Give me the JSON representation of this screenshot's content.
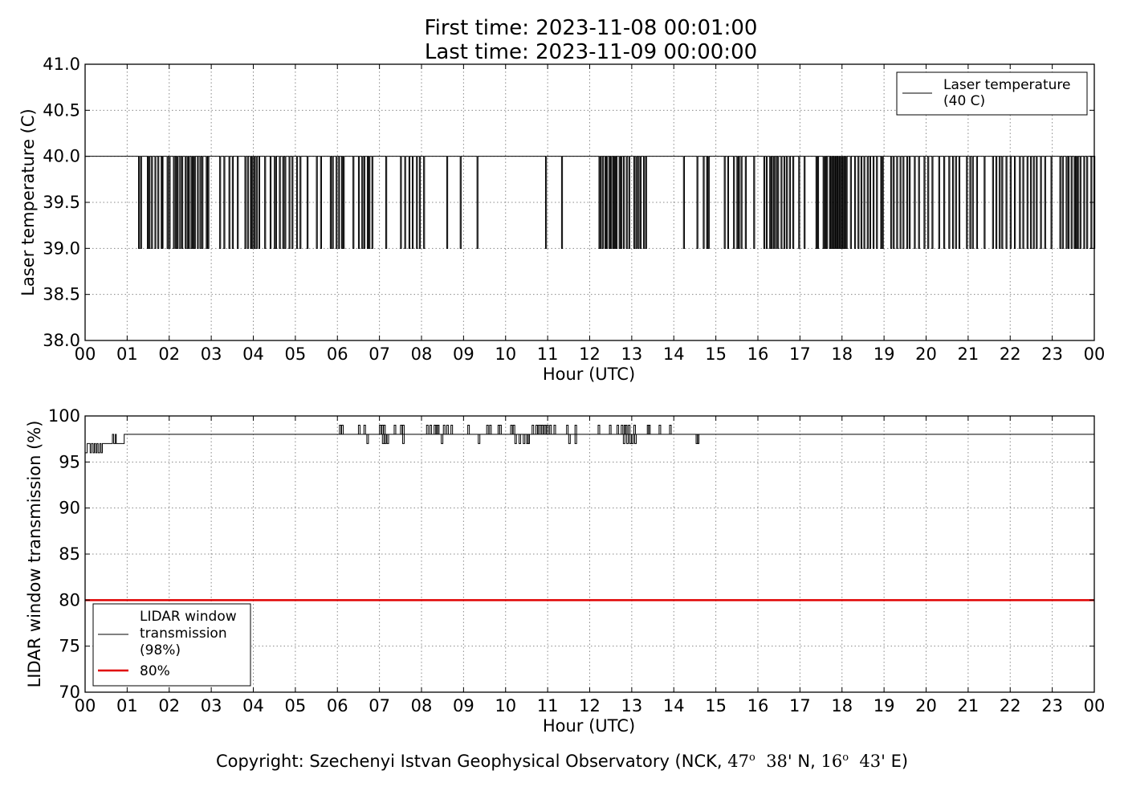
{
  "header": {
    "title_line1": "First time: 2023-11-08 00:01:00",
    "title_line2": "Last time: 2023-11-09 00:00:00"
  },
  "footer": {
    "copyright_prefix": "Copyright: Szechenyi Istvan Geophysical Observatory (NCK,",
    "lat_deg": "47",
    "lat_min": "38'",
    "lat_hemi": "N,",
    "lon_deg": "16",
    "lon_min": "43'",
    "lon_hemi": "E)",
    "degree_mark": "o"
  },
  "colors": {
    "series": "#000000",
    "threshold": "#e00000",
    "grid": "#888888",
    "frame": "#000000"
  },
  "chart_data": [
    {
      "type": "line",
      "xlabel": "Hour (UTC)",
      "ylabel": "Laser temperature (C)",
      "xlim": [
        0,
        24
      ],
      "ylim": [
        38.0,
        41.0
      ],
      "x_tick_labels": [
        "00",
        "01",
        "02",
        "03",
        "04",
        "05",
        "06",
        "07",
        "08",
        "09",
        "10",
        "11",
        "12",
        "13",
        "14",
        "15",
        "16",
        "17",
        "18",
        "19",
        "20",
        "21",
        "22",
        "23",
        "00"
      ],
      "y_ticks": [
        "38.0",
        "38.5",
        "39.0",
        "39.5",
        "40.0",
        "40.5",
        "41.0"
      ],
      "grid": true,
      "legend_position": "top-right",
      "series": [
        {
          "name_line1": "Laser temperature",
          "name_line2": "(40 C)",
          "baseline": 40.0,
          "dip_value": 39.0,
          "dips_hours": [
            1.27,
            1.32,
            1.48,
            1.52,
            1.58,
            1.66,
            1.73,
            1.81,
            1.83,
            1.95,
            2.0,
            2.1,
            2.15,
            2.19,
            2.25,
            2.3,
            2.38,
            2.43,
            2.46,
            2.52,
            2.56,
            2.6,
            2.67,
            2.73,
            2.78,
            2.88,
            2.92,
            3.2,
            3.3,
            3.42,
            3.5,
            3.62,
            3.8,
            3.86,
            3.93,
            3.97,
            4.02,
            4.07,
            4.13,
            4.27,
            4.4,
            4.5,
            4.53,
            4.62,
            4.7,
            4.75,
            4.85,
            4.92,
            5.03,
            5.11,
            5.28,
            5.5,
            5.6,
            5.83,
            5.88,
            5.97,
            6.03,
            6.1,
            6.14,
            6.37,
            6.5,
            6.58,
            6.63,
            6.71,
            6.75,
            6.82,
            7.15,
            7.5,
            7.6,
            7.7,
            7.78,
            7.88,
            7.95,
            8.05,
            8.6,
            8.92,
            9.32,
            10.95,
            11.33,
            12.22,
            12.25,
            12.3,
            12.36,
            12.4,
            12.46,
            12.5,
            12.55,
            12.59,
            12.63,
            12.7,
            12.74,
            12.8,
            12.87,
            12.93,
            13.05,
            13.1,
            13.15,
            13.2,
            13.28,
            13.33,
            14.23,
            14.55,
            14.7,
            14.78,
            14.82,
            15.2,
            15.28,
            15.42,
            15.5,
            15.54,
            15.6,
            15.7,
            15.9,
            16.14,
            16.2,
            16.28,
            16.32,
            16.37,
            16.42,
            16.47,
            16.55,
            16.62,
            16.68,
            16.75,
            16.83,
            16.97,
            17.1,
            17.38,
            17.42,
            17.55,
            17.59,
            17.63,
            17.7,
            17.74,
            17.78,
            17.82,
            17.86,
            17.9,
            17.94,
            17.98,
            18.02,
            18.06,
            18.1,
            18.2,
            18.3,
            18.38,
            18.45,
            18.52,
            18.6,
            18.66,
            18.74,
            18.82,
            18.92,
            18.96,
            19.16,
            19.22,
            19.3,
            19.38,
            19.45,
            19.54,
            19.6,
            19.72,
            19.82,
            19.95,
            20.04,
            20.14,
            20.3,
            20.42,
            20.54,
            20.63,
            20.7,
            20.78,
            20.96,
            21.04,
            21.1,
            21.2,
            21.38,
            21.58,
            21.66,
            21.74,
            21.8,
            21.9,
            22.0,
            22.1,
            22.22,
            22.3,
            22.4,
            22.48,
            22.55,
            22.62,
            22.72,
            22.82,
            22.97,
            23.18,
            23.24,
            23.33,
            23.38,
            23.45,
            23.52,
            23.56,
            23.6,
            23.66,
            23.75,
            23.82,
            23.92,
            23.99
          ]
        }
      ]
    },
    {
      "type": "line",
      "xlabel": "Hour (UTC)",
      "ylabel": "LIDAR window transmission (%)",
      "xlim": [
        0,
        24
      ],
      "ylim": [
        70,
        100
      ],
      "x_tick_labels": [
        "00",
        "01",
        "02",
        "03",
        "04",
        "05",
        "06",
        "07",
        "08",
        "09",
        "10",
        "11",
        "12",
        "13",
        "14",
        "15",
        "16",
        "17",
        "18",
        "19",
        "20",
        "21",
        "22",
        "23",
        "00"
      ],
      "y_ticks": [
        "70",
        "75",
        "80",
        "85",
        "90",
        "95",
        "100"
      ],
      "grid": true,
      "legend_position": "bottom-left",
      "series": [
        {
          "name_line1": "LIDAR window",
          "name_line2": "transmission",
          "name_line3": "(98%)",
          "steps": [
            [
              0.0,
              96
            ],
            [
              0.05,
              97
            ],
            [
              0.12,
              96
            ],
            [
              0.15,
              97
            ],
            [
              0.19,
              96
            ],
            [
              0.22,
              97
            ],
            [
              0.25,
              96
            ],
            [
              0.28,
              97
            ],
            [
              0.31,
              96
            ],
            [
              0.35,
              97
            ],
            [
              0.38,
              96
            ],
            [
              0.41,
              97
            ],
            [
              0.65,
              98
            ],
            [
              0.68,
              97
            ],
            [
              0.72,
              98
            ],
            [
              0.74,
              97
            ],
            [
              0.93,
              98
            ]
          ],
          "baseline": 98,
          "up_spikes": [
            6.05,
            6.1,
            6.5,
            6.63,
            7.0,
            7.05,
            7.1,
            7.35,
            7.5,
            7.55,
            8.12,
            8.2,
            8.3,
            8.35,
            8.38,
            8.52,
            8.6,
            8.7,
            9.1,
            9.55,
            9.62,
            9.82,
            9.86,
            10.12,
            10.18,
            10.63,
            10.72,
            10.78,
            10.82,
            10.86,
            10.92,
            10.98,
            11.05,
            11.15,
            11.45,
            11.65,
            12.2,
            12.47,
            12.65,
            12.75,
            12.82,
            12.85,
            12.92,
            13.05,
            13.37,
            13.4,
            13.65,
            13.9
          ],
          "down_spikes": [
            6.7,
            7.07,
            7.12,
            7.18,
            7.55,
            8.47,
            9.35,
            10.22,
            10.32,
            10.42,
            10.5,
            10.53,
            11.5,
            11.65,
            12.8,
            12.88,
            12.95,
            13.0,
            13.07,
            14.53,
            14.56
          ]
        },
        {
          "name": "80%",
          "value": 80
        }
      ]
    }
  ]
}
